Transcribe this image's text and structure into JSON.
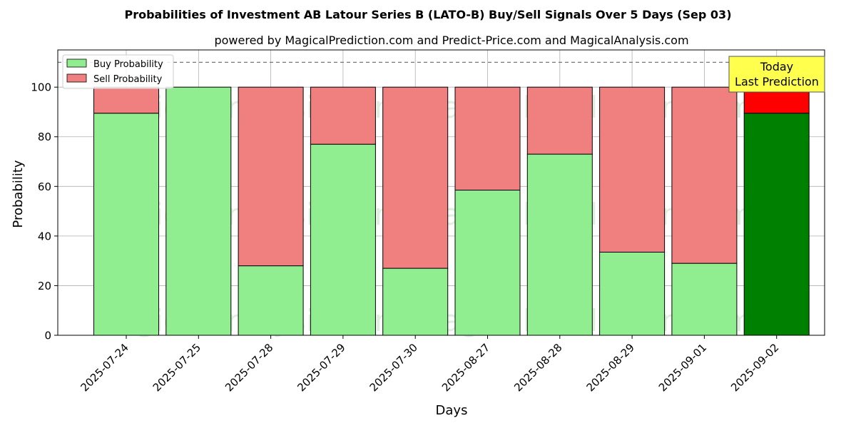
{
  "chart_data": {
    "type": "bar",
    "stacked": true,
    "title": "Probabilities of Investment AB Latour Series B (LATO-B) Buy/Sell Signals Over 5 Days (Sep 03)",
    "subtitle": "powered by MagicalPrediction.com and Predict-Price.com and MagicalAnalysis.com",
    "xlabel": "Days",
    "ylabel": "Probability",
    "ylim": [
      0,
      115
    ],
    "yticks": [
      0,
      20,
      40,
      60,
      80,
      100
    ],
    "grid": true,
    "legend_position": "top-left",
    "reference_line": 110,
    "categories": [
      "2025-07-24",
      "2025-07-25",
      "2025-07-28",
      "2025-07-29",
      "2025-07-30",
      "2025-08-27",
      "2025-08-28",
      "2025-08-29",
      "2025-09-01",
      "2025-09-02"
    ],
    "series": [
      {
        "name": "Buy Probability",
        "color": "#90ee90",
        "highlight_color": "#008000",
        "values": [
          89.5,
          100,
          28,
          77,
          27,
          58.5,
          73,
          33.5,
          29,
          89.5
        ]
      },
      {
        "name": "Sell Probability",
        "color": "#f08080",
        "highlight_color": "#ff0000",
        "values": [
          10.5,
          0,
          72,
          23,
          73,
          41.5,
          27,
          66.5,
          71,
          10.5
        ]
      }
    ],
    "highlight_index": 9,
    "annotation": {
      "line1": "Today",
      "line2": "Last Prediction",
      "bg": "#ffff4d"
    },
    "watermarks": [
      "MagicalAnalysis.com",
      "MagicalPrediction.com"
    ]
  }
}
